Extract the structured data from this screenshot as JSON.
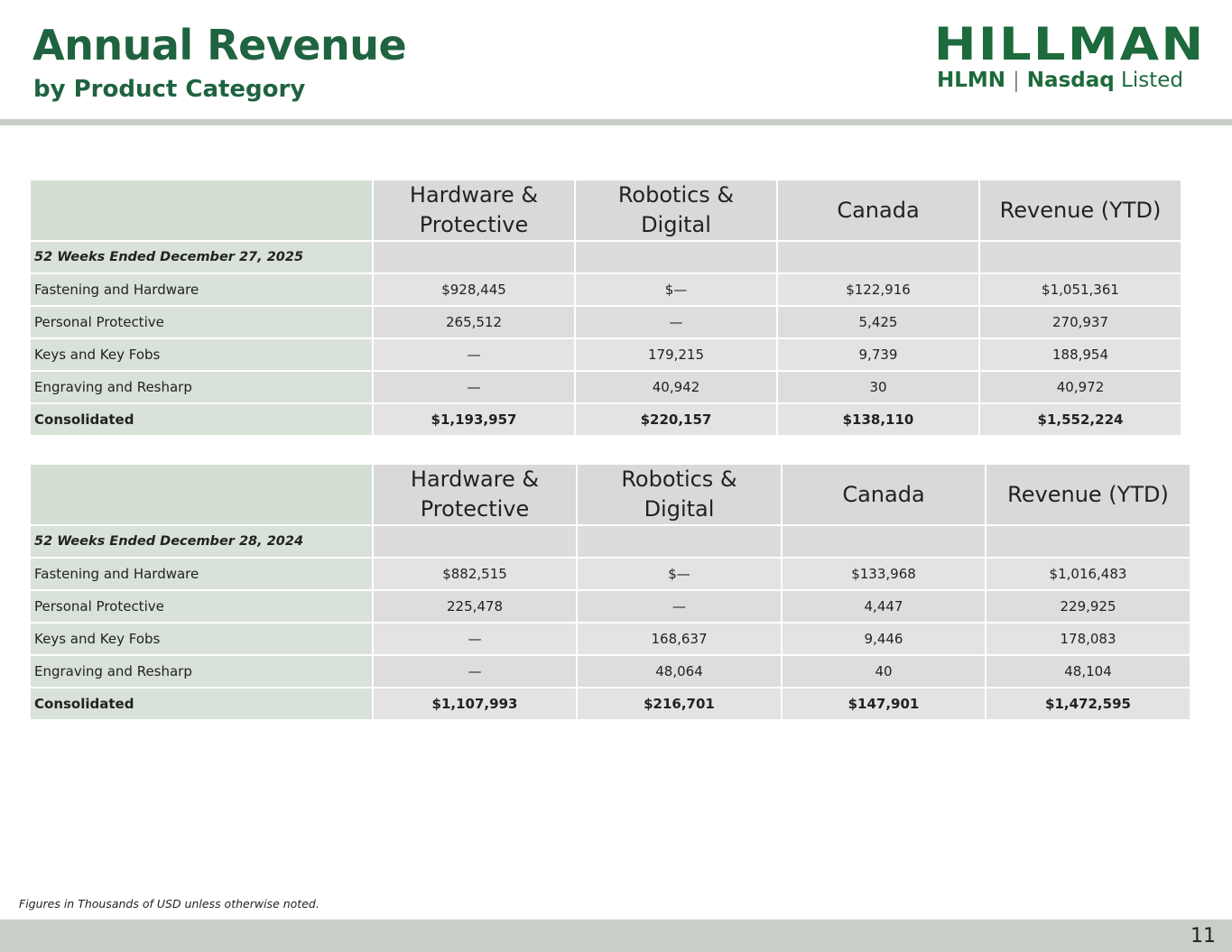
{
  "header": {
    "title": "Annual Revenue",
    "subtitle": "by Product Category"
  },
  "logo": {
    "wordmark": "HILLMAN",
    "ticker": "HLMN",
    "separator": "|",
    "exchange": "Nasdaq",
    "listed": "Listed",
    "color": "#1d6a3c"
  },
  "columns": [
    "Hardware & Protective",
    "Robotics & Digital",
    "Canada",
    "Revenue (YTD)"
  ],
  "tables": [
    {
      "period": "52 Weeks Ended December 27, 2025",
      "rows": [
        {
          "label": "Fastening and Hardware",
          "values": [
            "$928,445",
            "$—",
            "$122,916",
            "$1,051,361"
          ]
        },
        {
          "label": "Personal Protective",
          "values": [
            "265,512",
            "—",
            "5,425",
            "270,937"
          ]
        },
        {
          "label": "Keys and Key Fobs",
          "values": [
            "—",
            "179,215",
            "9,739",
            "188,954"
          ]
        },
        {
          "label": "Engraving and Resharp",
          "values": [
            "—",
            "40,942",
            "30",
            "40,972"
          ]
        },
        {
          "label": "Consolidated",
          "values": [
            "$1,193,957",
            "$220,157",
            "$138,110",
            "$1,552,224"
          ]
        }
      ]
    },
    {
      "period": "52 Weeks Ended December 28, 2024",
      "rows": [
        {
          "label": "Fastening and Hardware",
          "values": [
            "$882,515",
            "$—",
            "$133,968",
            "$1,016,483"
          ]
        },
        {
          "label": "Personal Protective",
          "values": [
            "225,478",
            "—",
            "4,447",
            "229,925"
          ]
        },
        {
          "label": "Keys and Key Fobs",
          "values": [
            "—",
            "168,637",
            "9,446",
            "178,083"
          ]
        },
        {
          "label": "Engraving and Resharp",
          "values": [
            "—",
            "48,064",
            "40",
            "48,104"
          ]
        },
        {
          "label": "Consolidated",
          "values": [
            "$1,107,993",
            "$216,701",
            "$147,901",
            "$1,472,595"
          ]
        }
      ]
    }
  ],
  "footnote": "Figures in Thousands of USD unless otherwise noted.",
  "page_number": "11",
  "colors": {
    "brand_green": "#1f6340",
    "rule_gray": "#c9cfc8",
    "label_cell": "#d8e2d8",
    "value_cell": "#dddddd"
  }
}
